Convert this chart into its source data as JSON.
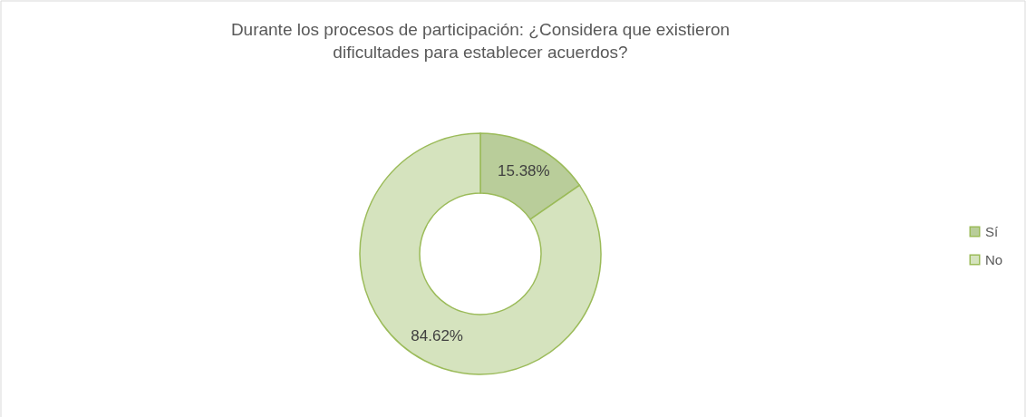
{
  "chart_data": {
    "type": "donut",
    "title": "Durante los procesos de participación: ¿Considera que existieron dificultades para establecer acuerdos?",
    "categories": [
      "Sí",
      "No"
    ],
    "values": [
      15.38,
      84.62
    ],
    "colors": [
      "#b9cd9a",
      "#d5e3be"
    ],
    "value_labels": [
      "15.38%",
      "84.62%"
    ],
    "legend": "right"
  }
}
